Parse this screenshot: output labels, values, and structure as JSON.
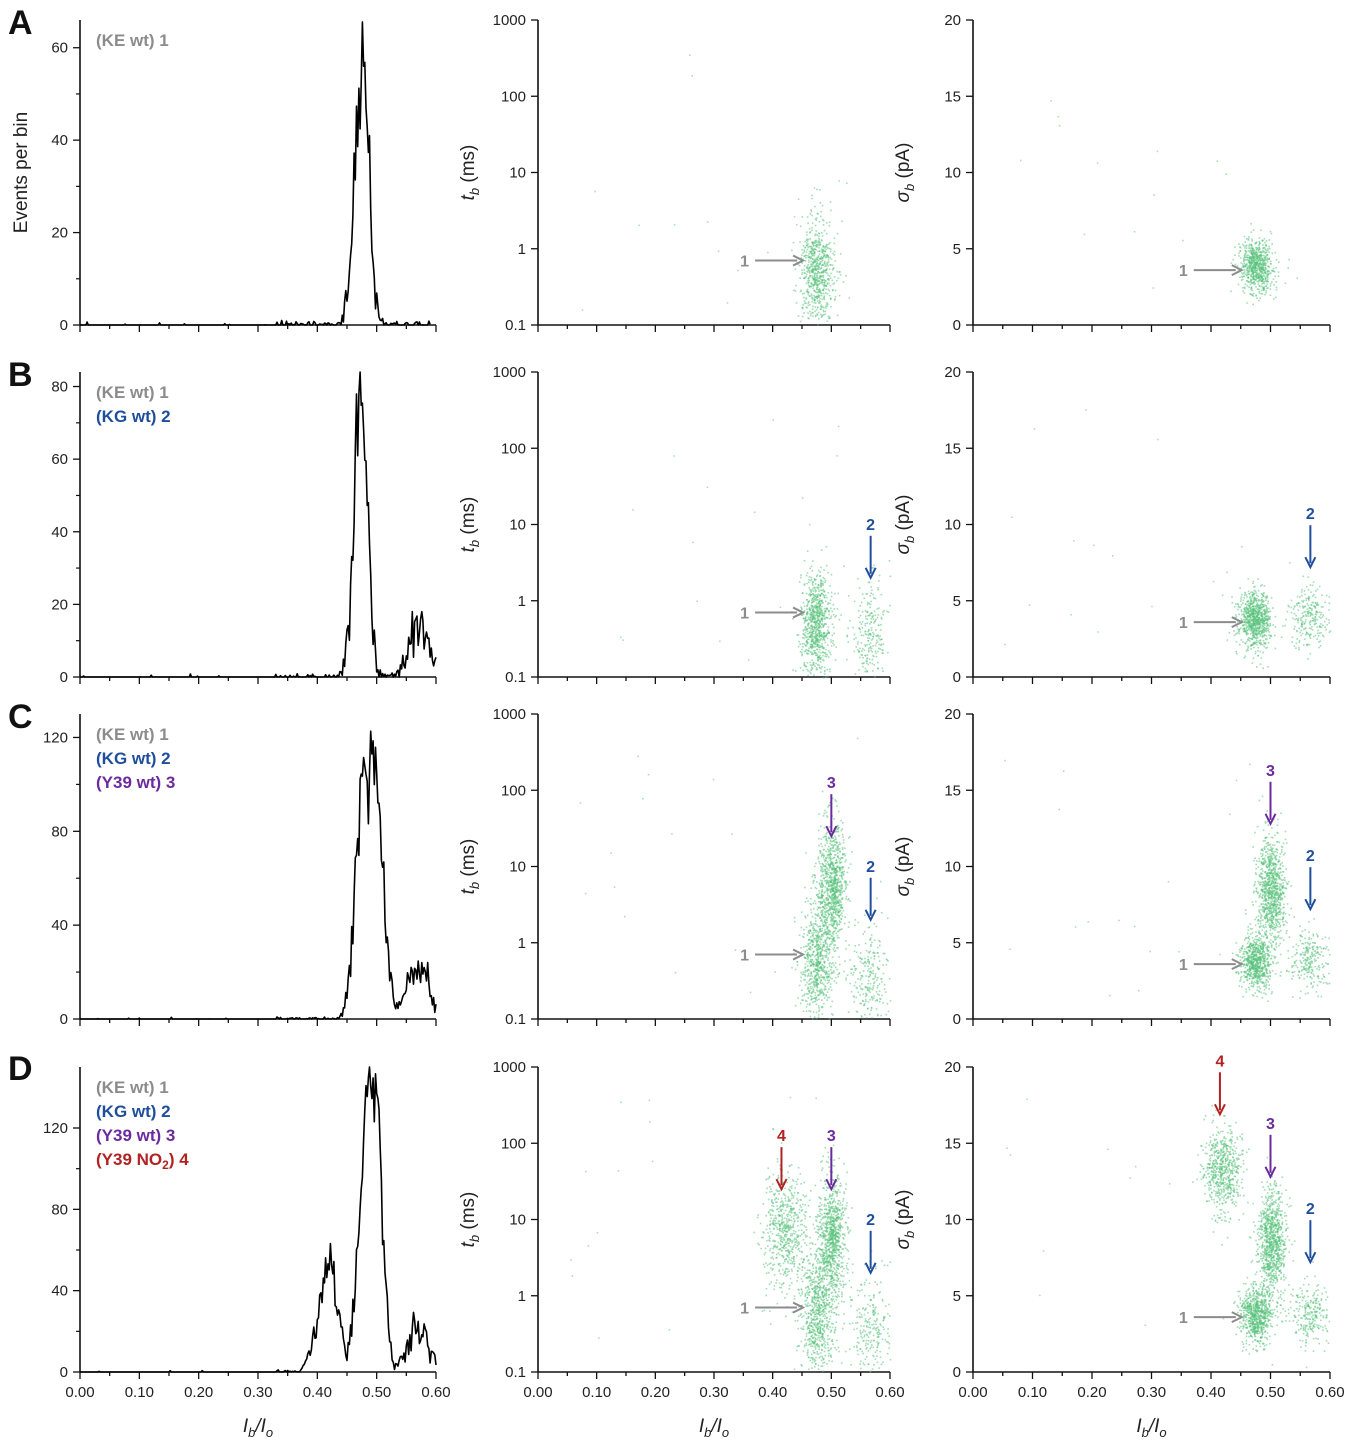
{
  "figure": {
    "axis_titles": {
      "hist_y": "Events per bin",
      "tb_y": [
        "t",
        "b",
        " (ms)"
      ],
      "sb_y": [
        "σ",
        "b",
        " (pA)"
      ],
      "x": [
        "I",
        "b",
        "/I",
        "o"
      ]
    }
  },
  "chart_data": [
    {
      "panel": "A",
      "type": "line",
      "kind": "histogram",
      "xlim": [
        0,
        0.6
      ],
      "ylim": [
        0,
        66
      ],
      "yticks": [
        0,
        20,
        40,
        60
      ],
      "xticks": [
        "0.00",
        "0.10",
        "0.20",
        "0.30",
        "0.40",
        "0.50",
        "0.60"
      ],
      "show_xticklabels": false,
      "legend": [
        {
          "text": "(KE wt) 1",
          "color": "#8c8c8c"
        }
      ],
      "peaks": [
        {
          "center": 0.475,
          "width": 0.012,
          "height": 58
        }
      ],
      "max_x": 0.59
    },
    {
      "panel": "A",
      "type": "scatter",
      "kind": "tb",
      "xlim": [
        0,
        0.6
      ],
      "ylim": [
        0.1,
        1000
      ],
      "yscale": "log",
      "yticks": [
        "0.1",
        "1",
        "10",
        "100",
        "1000"
      ],
      "clusters": [
        {
          "x": 0.475,
          "sx": 0.014,
          "y": 0.5,
          "sy": 0.35,
          "n": 700
        }
      ],
      "annotations": [
        {
          "label": "1",
          "dir": "right",
          "color": "#8c8c8c",
          "x": 0.445,
          "y": 0.7
        }
      ]
    },
    {
      "panel": "A",
      "type": "scatter",
      "kind": "sb",
      "xlim": [
        0,
        0.6
      ],
      "ylim": [
        0,
        20
      ],
      "yticks": [
        "0",
        "5",
        "10",
        "15",
        "20"
      ],
      "clusters": [
        {
          "x": 0.475,
          "sx": 0.014,
          "y": 3.9,
          "sy": 0.9,
          "n": 700
        }
      ],
      "annotations": [
        {
          "label": "1",
          "dir": "right",
          "color": "#8c8c8c",
          "x": 0.445,
          "y": 3.6
        }
      ]
    },
    {
      "panel": "B",
      "type": "line",
      "kind": "histogram",
      "xlim": [
        0,
        0.6
      ],
      "ylim": [
        0,
        84
      ],
      "yticks": [
        0,
        20,
        40,
        60,
        80
      ],
      "xticks": [
        "0.00",
        "0.10",
        "0.20",
        "0.30",
        "0.40",
        "0.50",
        "0.60"
      ],
      "show_xticklabels": false,
      "legend": [
        {
          "text": "(KE wt) 1",
          "color": "#8c8c8c"
        },
        {
          "text": "(KG wt) 2",
          "color": "#1f4e9c"
        }
      ],
      "peaks": [
        {
          "center": 0.473,
          "width": 0.011,
          "height": 80
        },
        {
          "center": 0.575,
          "width": 0.018,
          "height": 14
        }
      ],
      "max_x": 0.6
    },
    {
      "panel": "B",
      "type": "scatter",
      "kind": "tb",
      "xlim": [
        0,
        0.6
      ],
      "ylim": [
        0.1,
        1000
      ],
      "yscale": "log",
      "yticks": [
        "0.1",
        "1",
        "10",
        "100",
        "1000"
      ],
      "clusters": [
        {
          "x": 0.473,
          "sx": 0.013,
          "y": 0.5,
          "sy": 0.35,
          "n": 800
        },
        {
          "x": 0.565,
          "sx": 0.018,
          "y": 0.35,
          "sy": 0.35,
          "n": 250
        }
      ],
      "annotations": [
        {
          "label": "1",
          "dir": "right",
          "color": "#8c8c8c",
          "x": 0.445,
          "y": 0.7
        },
        {
          "label": "2",
          "dir": "down",
          "color": "#1f4e9c",
          "x": 0.567,
          "y": 2
        }
      ]
    },
    {
      "panel": "B",
      "type": "scatter",
      "kind": "sb",
      "xlim": [
        0,
        0.6
      ],
      "ylim": [
        0,
        20
      ],
      "yticks": [
        "0",
        "5",
        "10",
        "15",
        "20"
      ],
      "clusters": [
        {
          "x": 0.473,
          "sx": 0.013,
          "y": 3.8,
          "sy": 0.9,
          "n": 800
        },
        {
          "x": 0.565,
          "sx": 0.018,
          "y": 3.9,
          "sy": 1.0,
          "n": 250
        }
      ],
      "annotations": [
        {
          "label": "1",
          "dir": "right",
          "color": "#8c8c8c",
          "x": 0.445,
          "y": 3.6
        },
        {
          "label": "2",
          "dir": "down",
          "color": "#1f4e9c",
          "x": 0.567,
          "y": 7.2
        }
      ]
    },
    {
      "panel": "C",
      "type": "line",
      "kind": "histogram",
      "xlim": [
        0,
        0.6
      ],
      "ylim": [
        0,
        130
      ],
      "yticks": [
        0,
        40,
        80,
        120
      ],
      "xticks": [
        "0.00",
        "0.10",
        "0.20",
        "0.30",
        "0.40",
        "0.50",
        "0.60"
      ],
      "show_xticklabels": false,
      "legend": [
        {
          "text": "(KE wt) 1",
          "color": "#8c8c8c"
        },
        {
          "text": "(KG wt) 2",
          "color": "#1f4e9c"
        },
        {
          "text": "(Y39 wt) 3",
          "color": "#6b2b9e"
        }
      ],
      "peaks": [
        {
          "center": 0.475,
          "width": 0.012,
          "height": 95
        },
        {
          "center": 0.5,
          "width": 0.012,
          "height": 95
        },
        {
          "center": 0.57,
          "width": 0.02,
          "height": 20
        }
      ],
      "max_x": 0.6
    },
    {
      "panel": "C",
      "type": "scatter",
      "kind": "tb",
      "xlim": [
        0,
        0.6
      ],
      "ylim": [
        0.1,
        1000
      ],
      "yscale": "log",
      "yticks": [
        "0.1",
        "1",
        "10",
        "100",
        "1000"
      ],
      "clusters": [
        {
          "x": 0.475,
          "sx": 0.014,
          "y": 0.6,
          "sy": 0.4,
          "n": 700
        },
        {
          "x": 0.5,
          "sx": 0.012,
          "y": 6,
          "sy": 0.4,
          "n": 900
        },
        {
          "x": 0.565,
          "sx": 0.018,
          "y": 0.4,
          "sy": 0.35,
          "n": 250
        }
      ],
      "annotations": [
        {
          "label": "1",
          "dir": "right",
          "color": "#8c8c8c",
          "x": 0.445,
          "y": 0.7
        },
        {
          "label": "2",
          "dir": "down",
          "color": "#1f4e9c",
          "x": 0.567,
          "y": 2
        },
        {
          "label": "3",
          "dir": "down",
          "color": "#6b2b9e",
          "x": 0.5,
          "y": 25
        }
      ]
    },
    {
      "panel": "C",
      "type": "scatter",
      "kind": "sb",
      "xlim": [
        0,
        0.6
      ],
      "ylim": [
        0,
        20
      ],
      "yticks": [
        "0",
        "5",
        "10",
        "15",
        "20"
      ],
      "clusters": [
        {
          "x": 0.475,
          "sx": 0.013,
          "y": 3.8,
          "sy": 0.9,
          "n": 700
        },
        {
          "x": 0.5,
          "sx": 0.012,
          "y": 8.5,
          "sy": 1.8,
          "n": 900
        },
        {
          "x": 0.565,
          "sx": 0.018,
          "y": 3.9,
          "sy": 1.0,
          "n": 250
        }
      ],
      "annotations": [
        {
          "label": "1",
          "dir": "right",
          "color": "#8c8c8c",
          "x": 0.445,
          "y": 3.6
        },
        {
          "label": "2",
          "dir": "down",
          "color": "#1f4e9c",
          "x": 0.567,
          "y": 7.2
        },
        {
          "label": "3",
          "dir": "down",
          "color": "#6b2b9e",
          "x": 0.5,
          "y": 12.8
        }
      ]
    },
    {
      "panel": "D",
      "type": "line",
      "kind": "histogram",
      "xlim": [
        0,
        0.6
      ],
      "ylim": [
        0,
        150
      ],
      "yticks": [
        0,
        40,
        80,
        120
      ],
      "xticks": [
        "0.00",
        "0.10",
        "0.20",
        "0.30",
        "0.40",
        "0.50",
        "0.60"
      ],
      "show_xticklabels": true,
      "legend": [
        {
          "text": "(KE wt) 1",
          "color": "#8c8c8c"
        },
        {
          "text": "(KG wt) 2",
          "color": "#1f4e9c"
        },
        {
          "text": "(Y39 wt) 3",
          "color": "#6b2b9e"
        },
        {
          "text": "(Y39 NO",
          "sub": "2",
          "after": ") 4",
          "color": "#b22222"
        }
      ],
      "peaks": [
        {
          "center": 0.418,
          "width": 0.016,
          "height": 52
        },
        {
          "center": 0.48,
          "width": 0.012,
          "height": 100
        },
        {
          "center": 0.5,
          "width": 0.011,
          "height": 110
        },
        {
          "center": 0.57,
          "width": 0.018,
          "height": 22
        }
      ],
      "max_x": 0.6
    },
    {
      "panel": "D",
      "type": "scatter",
      "kind": "tb",
      "xlim": [
        0,
        0.6
      ],
      "ylim": [
        0.1,
        1000
      ],
      "yscale": "log",
      "yticks": [
        "0.1",
        "1",
        "10",
        "100",
        "1000"
      ],
      "clusters": [
        {
          "x": 0.418,
          "sx": 0.018,
          "y": 8,
          "sy": 0.4,
          "n": 600
        },
        {
          "x": 0.475,
          "sx": 0.014,
          "y": 0.6,
          "sy": 0.4,
          "n": 700
        },
        {
          "x": 0.5,
          "sx": 0.012,
          "y": 6,
          "sy": 0.4,
          "n": 900
        },
        {
          "x": 0.565,
          "sx": 0.018,
          "y": 0.4,
          "sy": 0.35,
          "n": 250
        }
      ],
      "annotations": [
        {
          "label": "1",
          "dir": "right",
          "color": "#8c8c8c",
          "x": 0.445,
          "y": 0.7
        },
        {
          "label": "2",
          "dir": "down",
          "color": "#1f4e9c",
          "x": 0.567,
          "y": 2
        },
        {
          "label": "3",
          "dir": "down",
          "color": "#6b2b9e",
          "x": 0.5,
          "y": 25
        },
        {
          "label": "4",
          "dir": "down",
          "color": "#b22222",
          "x": 0.415,
          "y": 25
        }
      ]
    },
    {
      "panel": "D",
      "type": "scatter",
      "kind": "sb",
      "xlim": [
        0,
        0.6
      ],
      "ylim": [
        0,
        20
      ],
      "yticks": [
        "0",
        "5",
        "10",
        "15",
        "20"
      ],
      "show_xticklabels": true,
      "clusters": [
        {
          "x": 0.418,
          "sx": 0.016,
          "y": 13.3,
          "sy": 1.4,
          "n": 600
        },
        {
          "x": 0.475,
          "sx": 0.013,
          "y": 3.8,
          "sy": 0.9,
          "n": 700
        },
        {
          "x": 0.5,
          "sx": 0.012,
          "y": 8.5,
          "sy": 1.8,
          "n": 900
        },
        {
          "x": 0.565,
          "sx": 0.018,
          "y": 3.9,
          "sy": 1.0,
          "n": 250
        }
      ],
      "annotations": [
        {
          "label": "1",
          "dir": "right",
          "color": "#8c8c8c",
          "x": 0.445,
          "y": 3.6
        },
        {
          "label": "2",
          "dir": "down",
          "color": "#1f4e9c",
          "x": 0.567,
          "y": 7.2
        },
        {
          "label": "3",
          "dir": "down",
          "color": "#6b2b9e",
          "x": 0.5,
          "y": 12.8
        },
        {
          "label": "4",
          "dir": "down",
          "color": "#b22222",
          "x": 0.415,
          "y": 16.9
        }
      ]
    }
  ],
  "panel_letters": [
    "A",
    "B",
    "C",
    "D"
  ],
  "colors": {
    "scatter": "#56c17a",
    "axis": "#111111",
    "line": "#000000"
  }
}
